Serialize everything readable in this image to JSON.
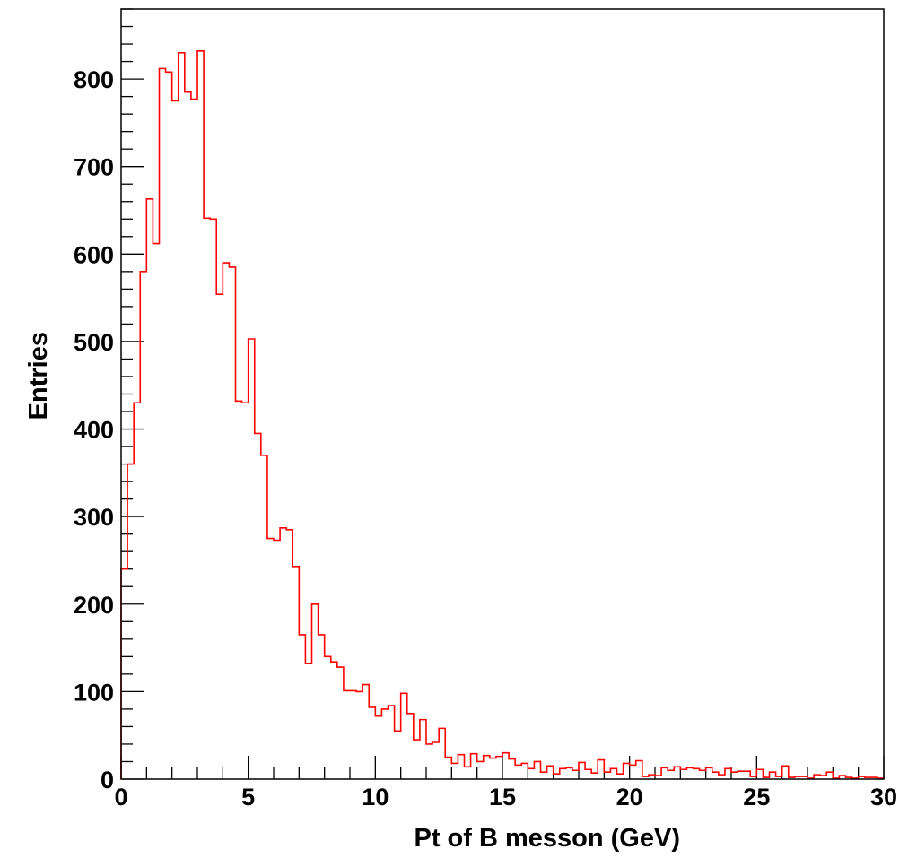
{
  "chart_data": {
    "type": "histogram",
    "xlabel": "Pt of B messon (GeV)",
    "ylabel": "Entries",
    "xlim": [
      0,
      30
    ],
    "ylim": [
      0,
      880
    ],
    "x_ticks": [
      0,
      5,
      10,
      15,
      20,
      25,
      30
    ],
    "y_ticks": [
      0,
      100,
      200,
      300,
      400,
      500,
      600,
      700,
      800
    ],
    "x_tick_labels": [
      "0",
      "5",
      "10",
      "15",
      "20",
      "25",
      "30"
    ],
    "y_tick_labels": [
      "0",
      "100",
      "200",
      "300",
      "400",
      "500",
      "600",
      "700",
      "800"
    ],
    "grid": false,
    "line_color": "#ff0000",
    "bin_width": 0.25,
    "bin_start": 0,
    "series": [
      {
        "values": [
          240,
          360,
          430,
          580,
          663,
          612,
          812,
          808,
          775,
          830,
          785,
          777,
          832,
          641,
          640,
          554,
          590,
          585,
          432,
          430,
          503,
          395,
          370,
          275,
          273,
          287,
          285,
          243,
          165,
          132,
          200,
          165,
          140,
          134,
          128,
          101,
          101,
          100,
          108,
          82,
          72,
          80,
          84,
          55,
          98,
          75,
          45,
          68,
          40,
          42,
          58,
          25,
          18,
          28,
          14,
          29,
          20,
          27,
          24,
          26,
          30,
          23,
          16,
          18,
          12,
          20,
          8,
          15,
          6,
          12,
          13,
          10,
          19,
          11,
          7,
          22,
          8,
          12,
          6,
          18,
          16,
          21,
          3,
          5,
          4,
          13,
          10,
          14,
          11,
          13,
          12,
          10,
          13,
          8,
          5,
          12,
          8,
          9,
          9,
          3,
          11,
          2,
          8,
          3,
          15,
          2,
          3,
          3,
          1,
          5,
          4,
          8,
          1,
          4,
          2,
          1,
          3,
          2,
          2,
          1
        ]
      }
    ]
  }
}
